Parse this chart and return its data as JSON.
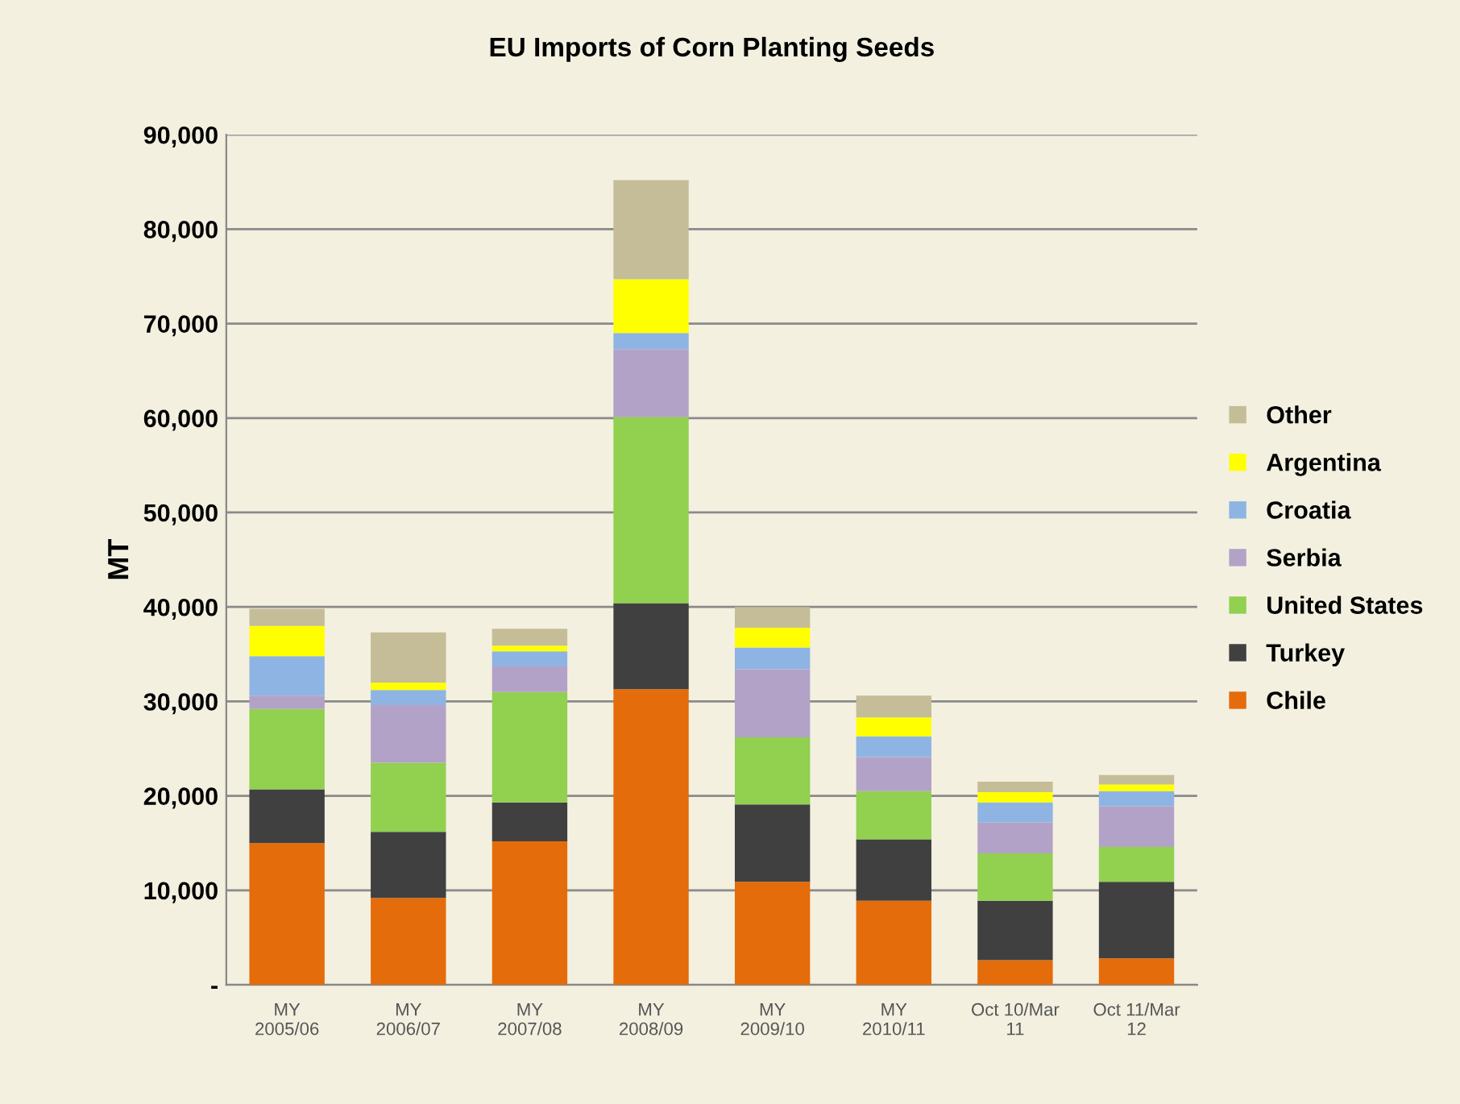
{
  "chart_data": {
    "type": "bar",
    "stacked": true,
    "title": "EU Imports of Corn Planting Seeds",
    "ylabel": "MT",
    "categories": [
      "MY\n2005/06",
      "MY\n2006/07",
      "MY\n2007/08",
      "MY\n2008/09",
      "MY\n2009/10",
      "MY\n2010/11",
      "Oct 10/Mar\n11",
      "Oct 11/Mar\n12"
    ],
    "series": [
      {
        "name": "Chile",
        "color": "#e46c0a",
        "values": [
          15000,
          9200,
          15200,
          31300,
          10900,
          8900,
          2600,
          2800
        ]
      },
      {
        "name": "Turkey",
        "color": "#404040",
        "values": [
          5700,
          7000,
          4100,
          9100,
          8200,
          6500,
          6300,
          8100
        ]
      },
      {
        "name": "United States",
        "color": "#92d050",
        "values": [
          8500,
          7300,
          11700,
          19700,
          7100,
          5100,
          5000,
          3700
        ]
      },
      {
        "name": "Serbia",
        "color": "#b3a2c7",
        "values": [
          1400,
          6100,
          2700,
          7200,
          7200,
          3600,
          3300,
          4300
        ]
      },
      {
        "name": "Croatia",
        "color": "#8eb4e3",
        "values": [
          4200,
          1600,
          1600,
          1700,
          2300,
          2200,
          2100,
          1600
        ]
      },
      {
        "name": "Argentina",
        "color": "#ffff00",
        "values": [
          3200,
          800,
          600,
          5700,
          2100,
          2000,
          1100,
          700
        ]
      },
      {
        "name": "Other",
        "color": "#c4bd97",
        "values": [
          1800,
          5300,
          1800,
          10500,
          2200,
          2300,
          1100,
          1000
        ]
      }
    ],
    "ylim": [
      0,
      90000
    ],
    "yticks": [
      {
        "value": 0,
        "label": "-"
      },
      {
        "value": 10000,
        "label": "10,000"
      },
      {
        "value": 20000,
        "label": "20,000"
      },
      {
        "value": 30000,
        "label": "30,000"
      },
      {
        "value": 40000,
        "label": "40,000"
      },
      {
        "value": 50000,
        "label": "50,000"
      },
      {
        "value": 60000,
        "label": "60,000"
      },
      {
        "value": 70000,
        "label": "70,000"
      },
      {
        "value": 80000,
        "label": "80,000"
      },
      {
        "value": 90000,
        "label": "90,000"
      }
    ],
    "grid": "y",
    "legend": "right"
  }
}
